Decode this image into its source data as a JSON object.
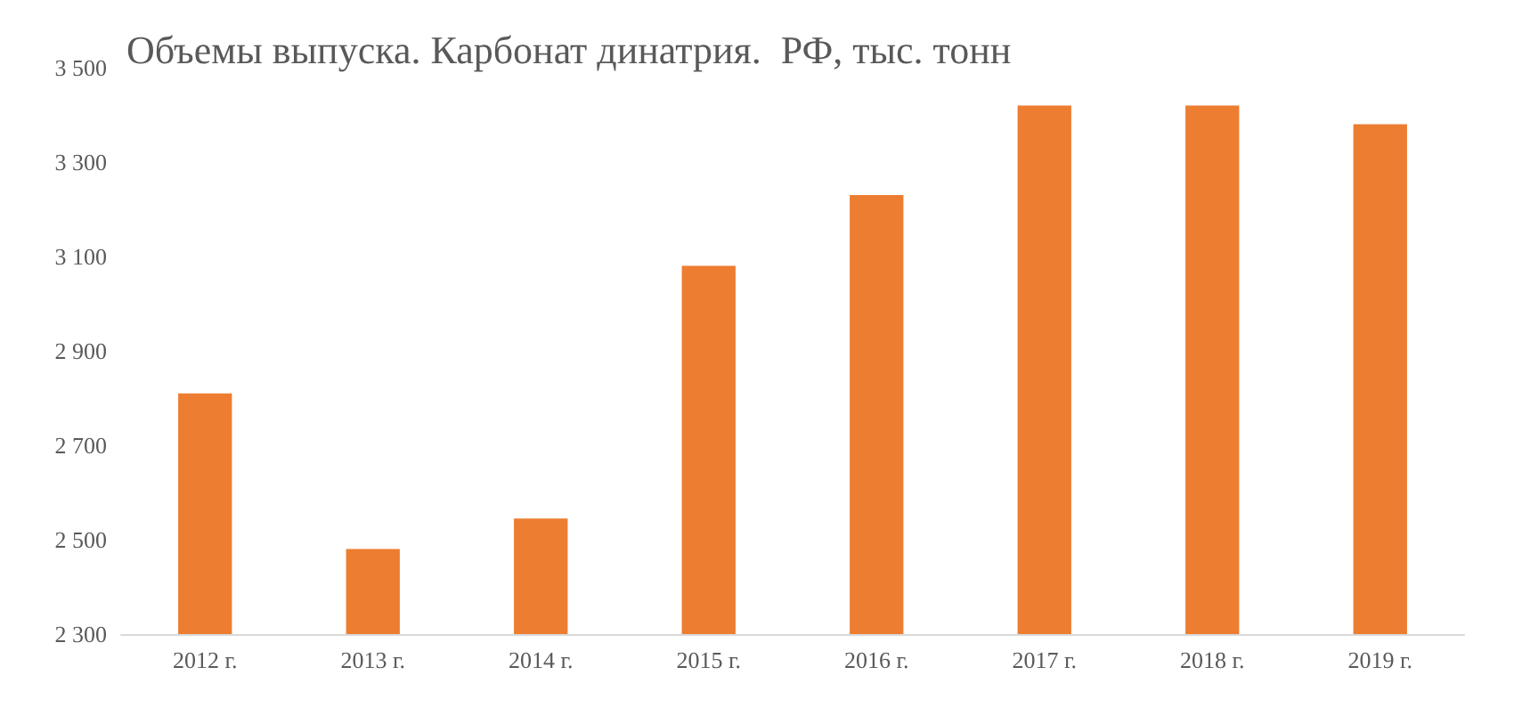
{
  "chart_data": {
    "type": "bar",
    "title": "Объемы выпуска. Карбонат динатрия.  РФ, тыс. тонн",
    "categories": [
      "2012 г.",
      "2013 г.",
      "2014 г.",
      "2015 г.",
      "2016 г.",
      "2017 г.",
      "2018 г.",
      "2019 г."
    ],
    "values": [
      2810,
      2480,
      2545,
      3080,
      3230,
      3420,
      3420,
      3380
    ],
    "color": "#ed7d31",
    "ylim": [
      2300,
      3500
    ],
    "yticks": [
      {
        "value": 2300,
        "label": "2 300"
      },
      {
        "value": 2500,
        "label": "2 500"
      },
      {
        "value": 2700,
        "label": "2 700"
      },
      {
        "value": 2900,
        "label": "2 900"
      },
      {
        "value": 3100,
        "label": "3 100"
      },
      {
        "value": 3300,
        "label": "3 300"
      },
      {
        "value": 3500,
        "label": "3 500"
      }
    ],
    "data_labels": false
  }
}
